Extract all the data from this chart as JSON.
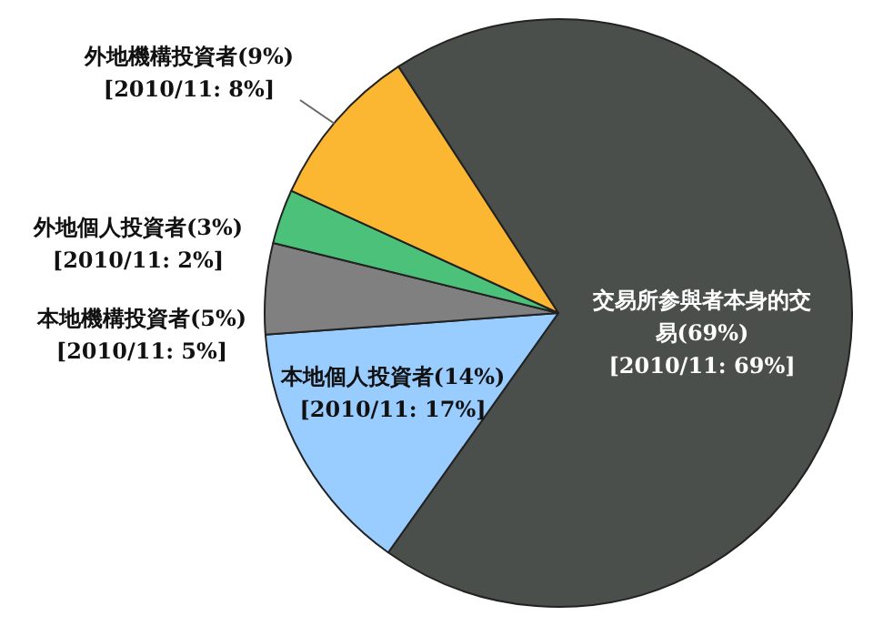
{
  "chart_data": {
    "type": "pie",
    "categories": [
      "交易所参與者本身的交易",
      "本地個人投資者",
      "本地機構投資者",
      "外地個人投資者",
      "外地機構投資者"
    ],
    "values": [
      69,
      14,
      5,
      3,
      9
    ],
    "colors": [
      "#4a4f4c",
      "#99ccff",
      "#808080",
      "#4cc17a",
      "#fbb731"
    ],
    "value_labels": [
      "(69%)\n[2010/11: 69%]",
      "(14%)\n[2010/11: 17%]",
      "(5%)\n[2010/11: 5%]",
      "(3%)\n[2010/11: 2%]",
      "(9%)\n[2010/11: 8%]"
    ],
    "legend": false
  }
}
